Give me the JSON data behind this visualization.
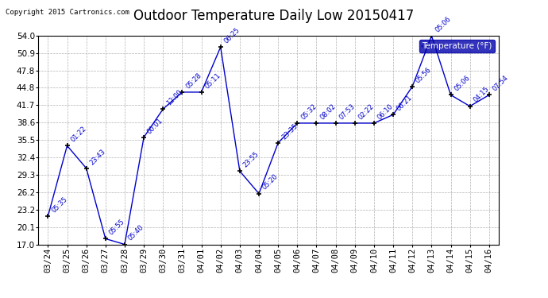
{
  "title": "Outdoor Temperature Daily Low 20150417",
  "copyright": "Copyright 2015 Cartronics.com",
  "legend_label": "Temperature (°F)",
  "x_labels": [
    "03/24",
    "03/25",
    "03/26",
    "03/27",
    "03/28",
    "03/29",
    "03/30",
    "03/31",
    "04/01",
    "04/02",
    "04/03",
    "04/04",
    "04/05",
    "04/06",
    "04/07",
    "04/08",
    "04/09",
    "04/10",
    "04/11",
    "04/12",
    "04/13",
    "04/14",
    "04/15",
    "04/16"
  ],
  "y_values": [
    22.0,
    34.5,
    30.5,
    18.0,
    17.0,
    36.0,
    41.0,
    44.0,
    44.0,
    52.0,
    30.0,
    26.0,
    35.0,
    38.5,
    38.5,
    38.5,
    38.5,
    38.5,
    40.0,
    45.0,
    54.0,
    43.5,
    41.5,
    43.5
  ],
  "time_labels": [
    "05:35",
    "01:22",
    "23:43",
    "05:55",
    "05:40",
    "00:01",
    "12:00",
    "05:28",
    "05:11",
    "06:25",
    "23:55",
    "05:20",
    "23:35",
    "05:32",
    "08:02",
    "07:53",
    "02:22",
    "06:10",
    "06:21",
    "05:56",
    "05:06",
    "05:06",
    "04:15",
    "07:54"
  ],
  "ylim": [
    17.0,
    54.0
  ],
  "yticks": [
    17.0,
    20.1,
    23.2,
    26.2,
    29.3,
    32.4,
    35.5,
    38.6,
    41.7,
    44.8,
    47.8,
    50.9,
    54.0
  ],
  "line_color": "#0000cc",
  "marker_color": "#000000",
  "bg_color": "#ffffff",
  "grid_color": "#b0b0b0",
  "title_fontsize": 12,
  "tick_fontsize": 7.5,
  "legend_bg": "#0000aa",
  "legend_fg": "#ffffff"
}
